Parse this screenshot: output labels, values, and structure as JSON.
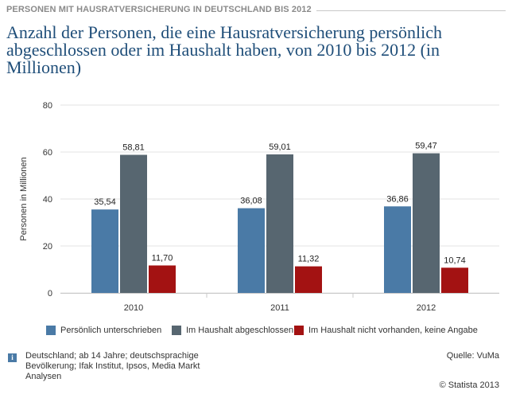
{
  "header": {
    "label": "PERSONEN MIT HAUSRATVERSICHERUNG IN DEUTSCHLAND BIS 2012"
  },
  "title": "Anzahl der Personen, die eine Hausratversicherung persönlich abgeschlossen oder im Haushalt haben, von 2010 bis 2012 (in Millionen)",
  "chart_data": {
    "type": "bar",
    "categories": [
      "2010",
      "2011",
      "2012"
    ],
    "series": [
      {
        "name": "Persönlich unterschrieben",
        "color": "#4a7aa6",
        "values": [
          35.54,
          36.08,
          36.86
        ],
        "labels": [
          "35,54",
          "36,08",
          "36,86"
        ]
      },
      {
        "name": "Im Haushalt abgeschlossen",
        "color": "#576670",
        "values": [
          58.81,
          59.01,
          59.47
        ],
        "labels": [
          "58,81",
          "59,01",
          "59,47"
        ]
      },
      {
        "name": "Im Haushalt nicht vorhanden, keine Angabe",
        "color": "#a31212",
        "values": [
          11.7,
          11.32,
          10.74
        ],
        "labels": [
          "11,70",
          "11,32",
          "10,74"
        ]
      }
    ],
    "ylabel": "Personen in Millionen",
    "ylim": [
      0,
      80
    ],
    "yticks": [
      0,
      20,
      40,
      60,
      80
    ],
    "grid": true,
    "legend": "bottom"
  },
  "footer": {
    "info_icon": "i",
    "note": "Deutschland; ab 14 Jahre; deutschsprachige Bevölkerung; Ifak Institut, Ipsos, Media Markt Analysen",
    "source": "Quelle: VuMa",
    "copyright": "© Statista 2013"
  }
}
